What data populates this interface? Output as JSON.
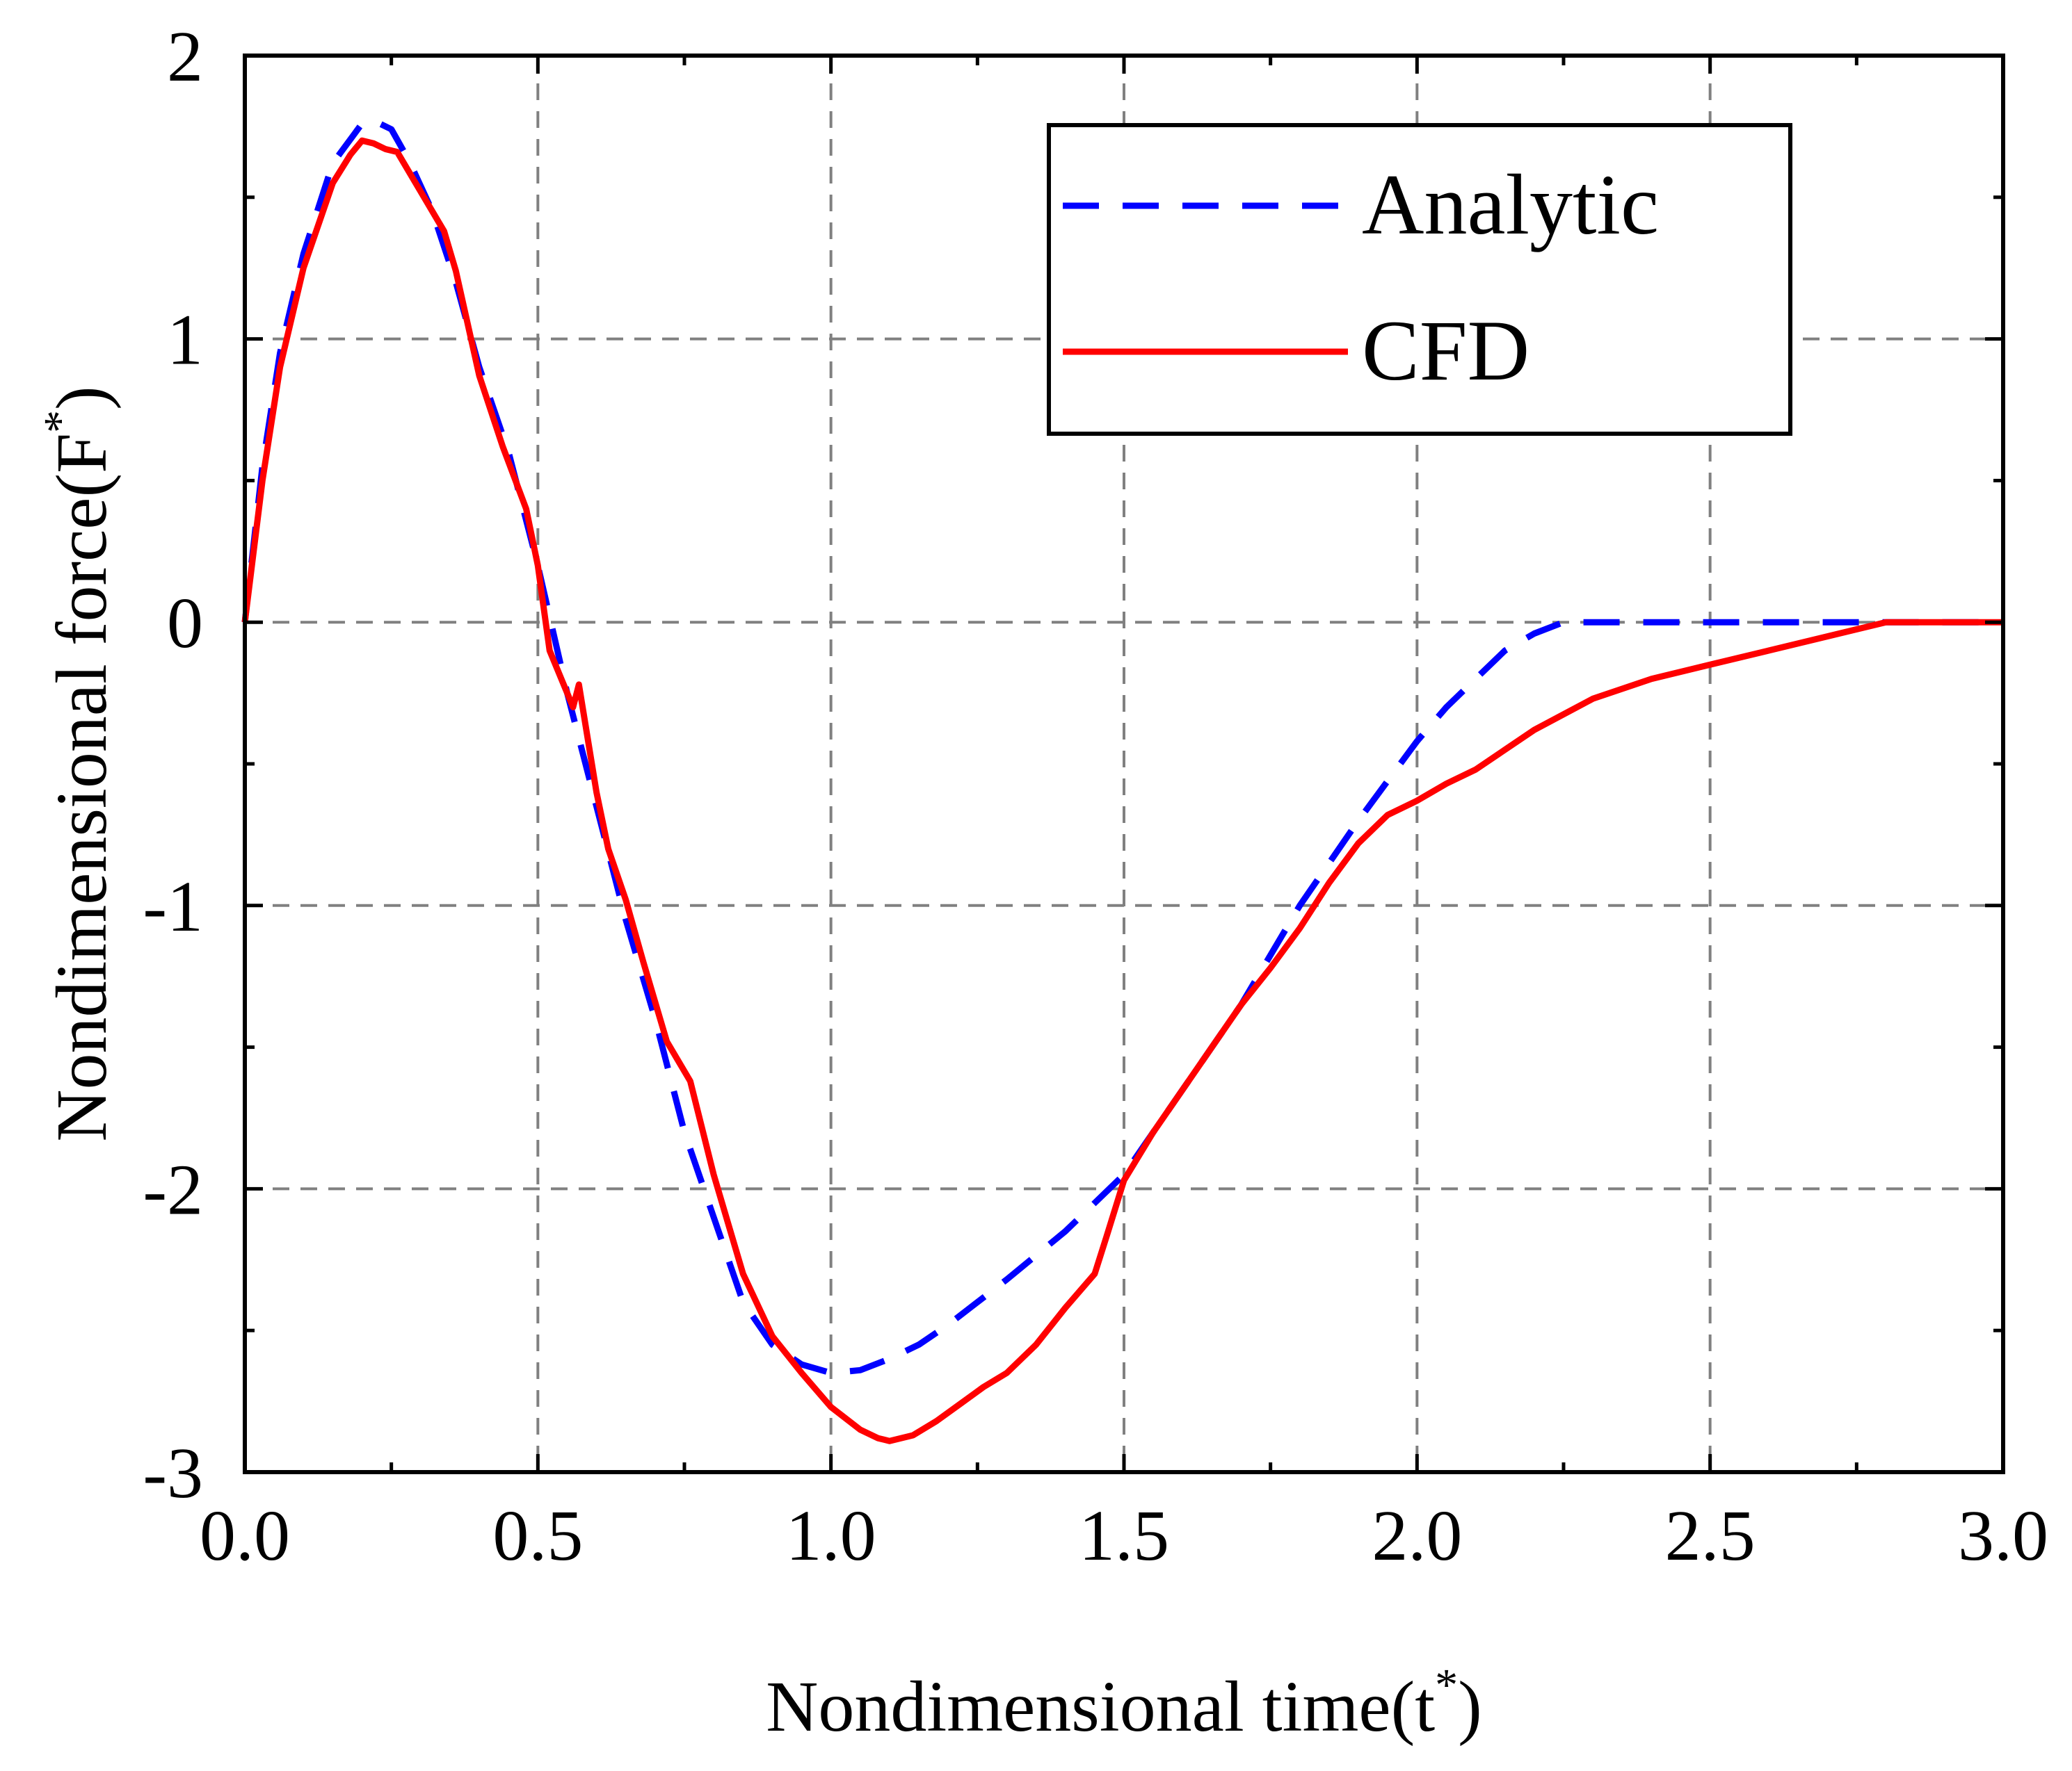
{
  "chart_data": {
    "type": "line",
    "title": "",
    "xlabel": "Nondimensional time(t",
    "xlabel_sup": "*",
    "xlabel_close": ")",
    "ylabel": "Nondimensional force(F",
    "ylabel_sup": "*",
    "ylabel_close": ")",
    "xlim": [
      0.0,
      3.0
    ],
    "ylim": [
      -3,
      2
    ],
    "xticks": [
      0.0,
      0.5,
      1.0,
      1.5,
      2.0,
      2.5,
      3.0
    ],
    "xtick_labels": [
      "0.0",
      "0.5",
      "1.0",
      "1.5",
      "2.0",
      "2.5",
      "3.0"
    ],
    "yticks": [
      -3,
      -2,
      -1,
      0,
      1,
      2
    ],
    "ytick_labels": [
      "-3",
      "-2",
      "-1",
      "0",
      "1",
      "2"
    ],
    "grid": true,
    "legend_position": "top-right",
    "series": [
      {
        "name": "Analytic",
        "color": "#0000ff",
        "style": "dashed",
        "x": [
          0.0,
          0.03,
          0.06,
          0.1,
          0.15,
          0.2,
          0.22,
          0.25,
          0.28,
          0.32,
          0.36,
          0.4,
          0.45,
          0.5,
          0.55,
          0.6,
          0.65,
          0.7,
          0.75,
          0.8,
          0.85,
          0.9,
          0.95,
          1.0,
          1.05,
          1.1,
          1.15,
          1.2,
          1.3,
          1.4,
          1.5,
          1.6,
          1.7,
          1.8,
          1.9,
          2.0,
          2.05,
          2.1,
          2.15,
          2.2,
          2.25,
          2.5,
          2.8,
          3.0
        ],
        "y": [
          0.0,
          0.55,
          0.95,
          1.3,
          1.62,
          1.76,
          1.77,
          1.74,
          1.63,
          1.45,
          1.2,
          0.9,
          0.6,
          0.2,
          -0.25,
          -0.65,
          -1.05,
          -1.4,
          -1.8,
          -2.1,
          -2.4,
          -2.55,
          -2.62,
          -2.65,
          -2.64,
          -2.6,
          -2.55,
          -2.48,
          -2.32,
          -2.15,
          -1.95,
          -1.65,
          -1.35,
          -1.0,
          -0.7,
          -0.42,
          -0.3,
          -0.2,
          -0.1,
          -0.04,
          0.0,
          0.0,
          0.0,
          0.0
        ]
      },
      {
        "name": "CFD",
        "color": "#ff0000",
        "style": "solid",
        "x": [
          0.0,
          0.03,
          0.06,
          0.1,
          0.15,
          0.18,
          0.2,
          0.22,
          0.24,
          0.26,
          0.3,
          0.34,
          0.36,
          0.4,
          0.44,
          0.48,
          0.5,
          0.52,
          0.54,
          0.55,
          0.56,
          0.57,
          0.6,
          0.62,
          0.65,
          0.68,
          0.72,
          0.76,
          0.8,
          0.85,
          0.9,
          0.95,
          1.0,
          1.05,
          1.08,
          1.1,
          1.14,
          1.18,
          1.22,
          1.26,
          1.3,
          1.35,
          1.4,
          1.45,
          1.47,
          1.5,
          1.55,
          1.6,
          1.65,
          1.7,
          1.75,
          1.8,
          1.85,
          1.9,
          1.95,
          2.0,
          2.05,
          2.1,
          2.2,
          2.3,
          2.4,
          2.5,
          2.6,
          2.7,
          2.8,
          2.9,
          3.0
        ],
        "y": [
          0.0,
          0.5,
          0.9,
          1.25,
          1.55,
          1.65,
          1.7,
          1.69,
          1.67,
          1.66,
          1.52,
          1.38,
          1.24,
          0.87,
          0.62,
          0.4,
          0.2,
          -0.1,
          -0.2,
          -0.25,
          -0.3,
          -0.22,
          -0.6,
          -0.8,
          -0.98,
          -1.2,
          -1.48,
          -1.62,
          -1.95,
          -2.3,
          -2.52,
          -2.65,
          -2.77,
          -2.85,
          -2.88,
          -2.89,
          -2.87,
          -2.82,
          -2.76,
          -2.7,
          -2.65,
          -2.55,
          -2.42,
          -2.3,
          -2.17,
          -1.97,
          -1.8,
          -1.65,
          -1.5,
          -1.35,
          -1.22,
          -1.08,
          -0.92,
          -0.78,
          -0.68,
          -0.63,
          -0.57,
          -0.52,
          -0.38,
          -0.27,
          -0.2,
          -0.15,
          -0.1,
          -0.05,
          0.0,
          0.0,
          0.0
        ]
      }
    ]
  }
}
